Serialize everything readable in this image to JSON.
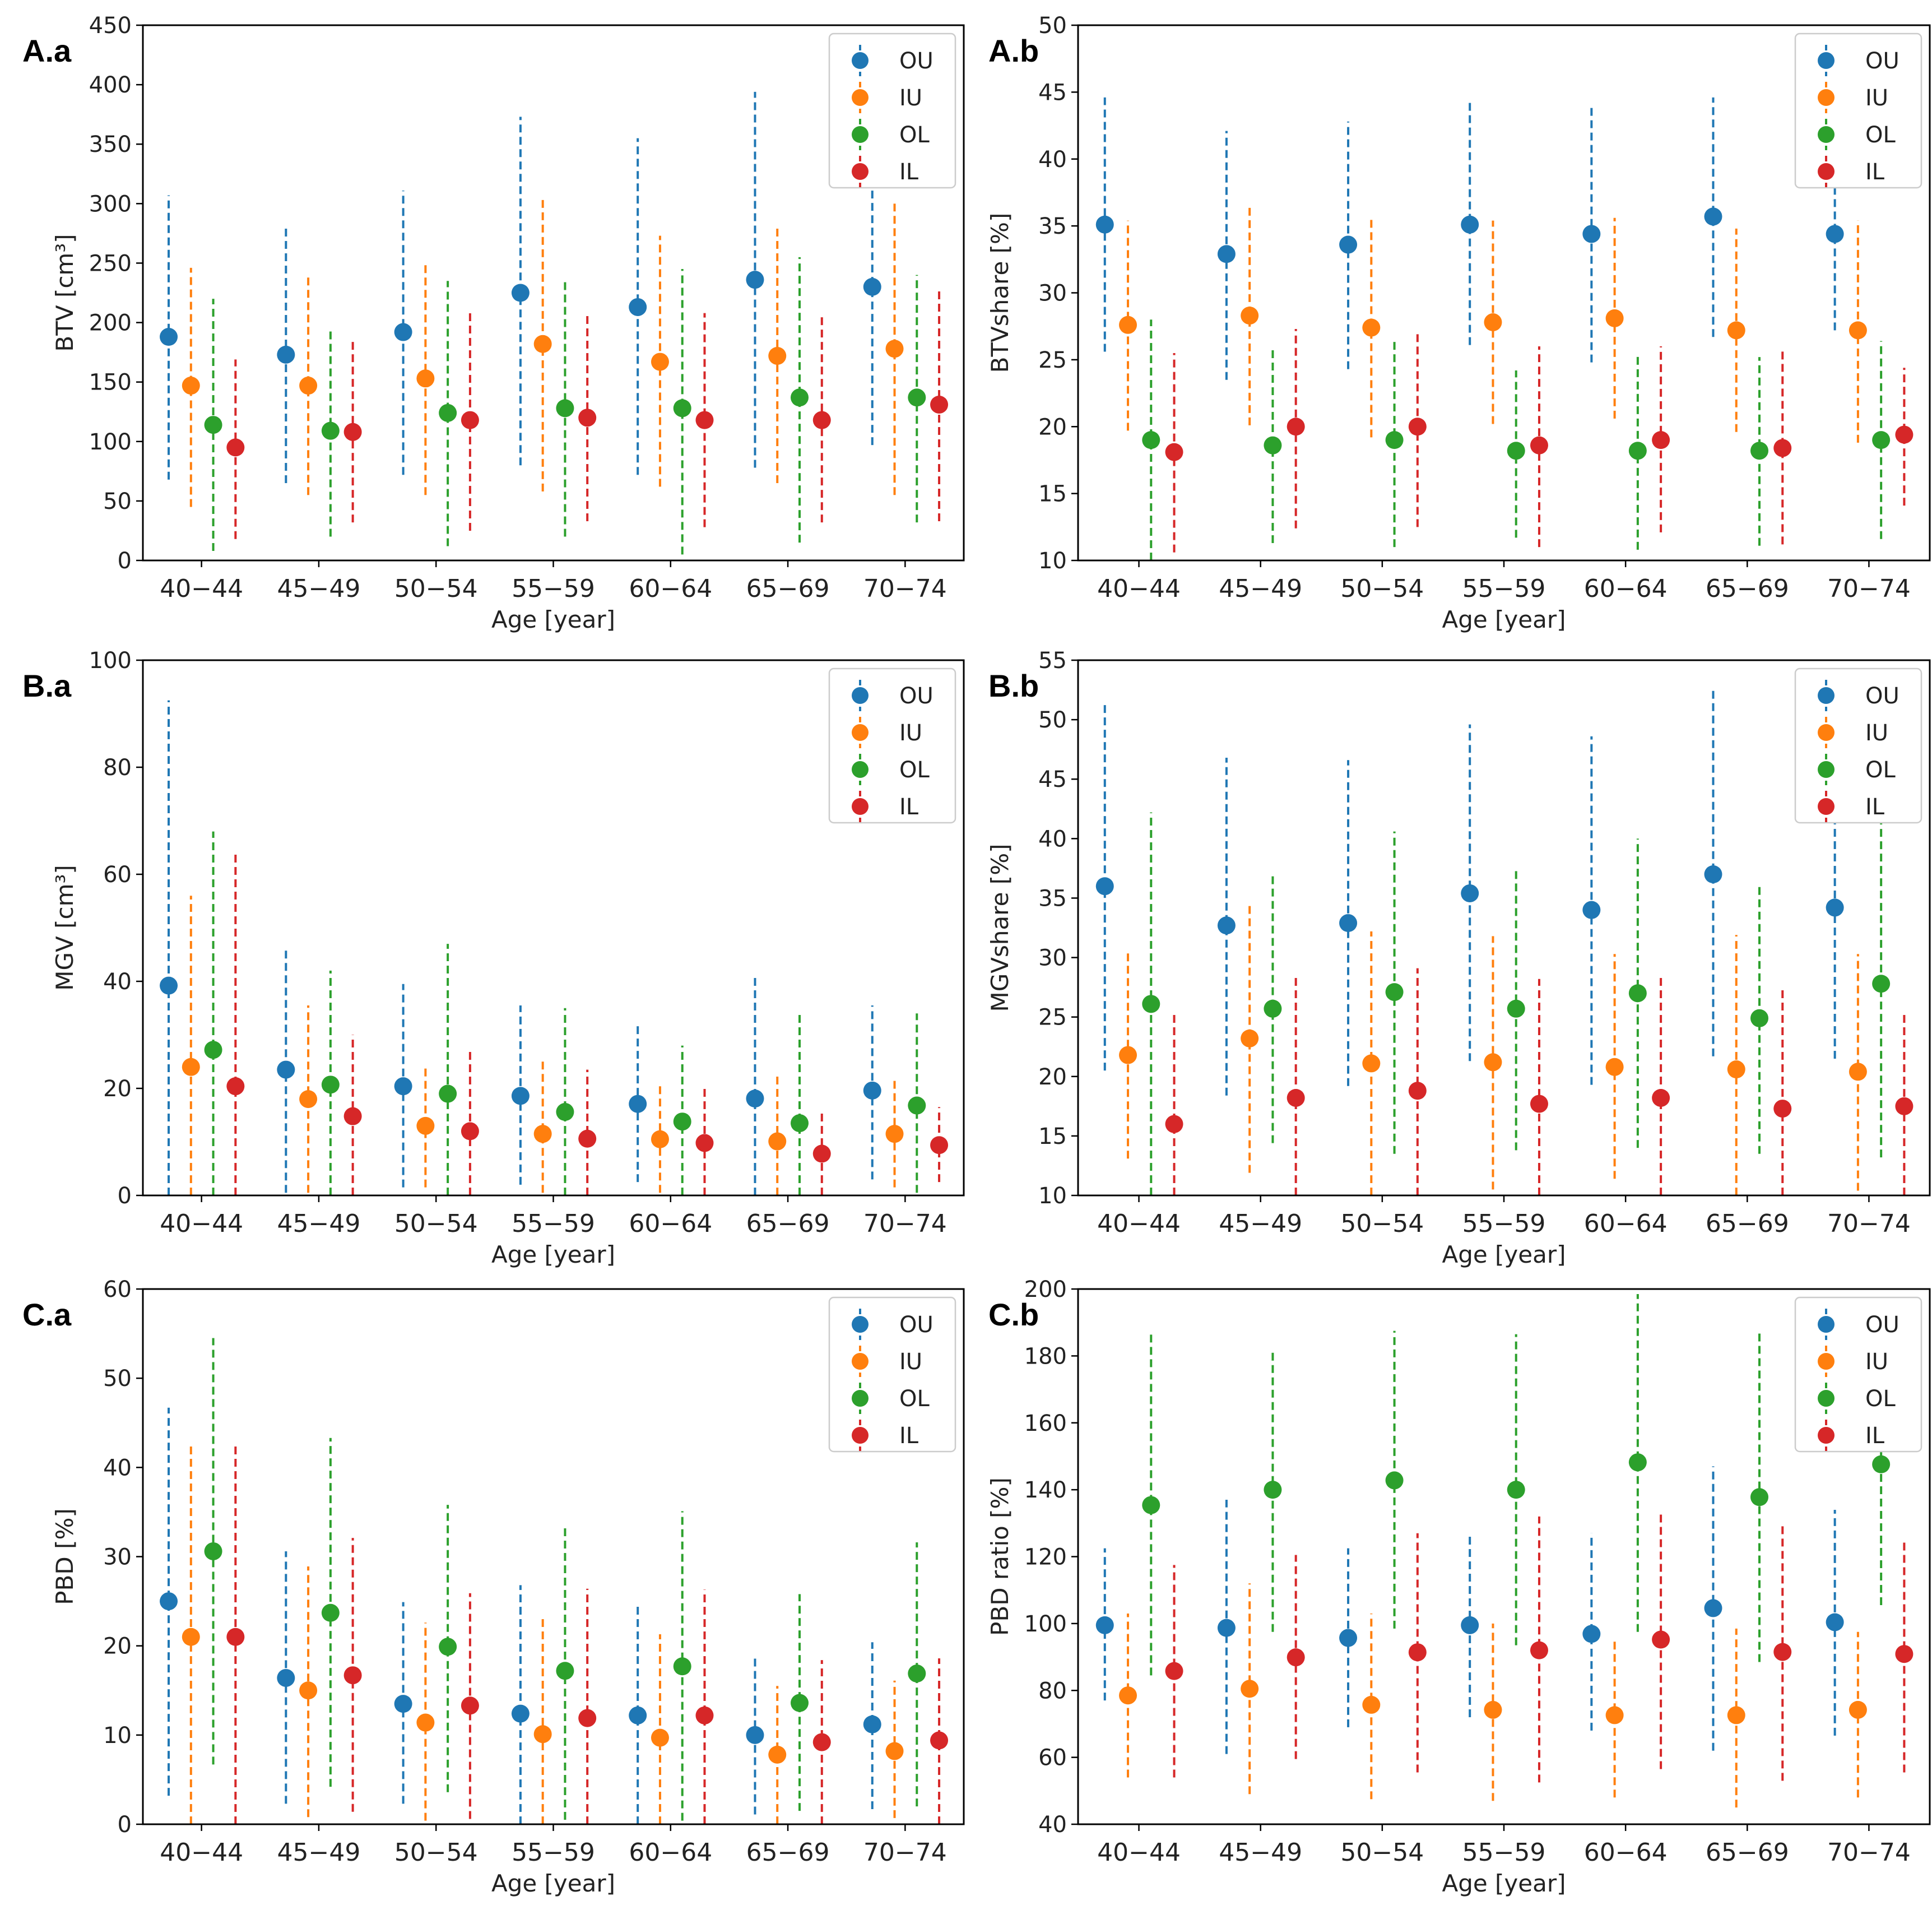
{
  "figure": {
    "colors": {
      "OU": "#1f77b4",
      "IU": "#ff7f0e",
      "OL": "#2ca02c",
      "IL": "#d62728"
    }
  },
  "chart_data": [
    {
      "id": "A.a",
      "type": "scatter",
      "panel_label": "A.a",
      "xlabel": "Age [year]",
      "ylabel": "BTV [cm³]",
      "ylim": [
        0,
        450
      ],
      "yticks": [
        0,
        50,
        100,
        150,
        200,
        250,
        300,
        350,
        400,
        450
      ],
      "categories": [
        "40−44",
        "45−49",
        "50−54",
        "55−59",
        "60−64",
        "65−69",
        "70−74"
      ],
      "legend": [
        "OU",
        "IU",
        "OL",
        "IL"
      ],
      "legend_position": "top-right",
      "series": [
        {
          "name": "OU",
          "values": [
            188,
            173,
            192,
            225,
            213,
            236,
            230
          ],
          "lower": [
            68,
            65,
            72,
            80,
            72,
            78,
            97
          ],
          "upper": [
            307,
            280,
            311,
            373,
            355,
            394,
            363
          ]
        },
        {
          "name": "IU",
          "values": [
            147,
            147,
            153,
            182,
            167,
            172,
            178
          ],
          "lower": [
            45,
            55,
            55,
            58,
            62,
            65,
            55
          ],
          "upper": [
            246,
            239,
            251,
            304,
            273,
            280,
            300
          ]
        },
        {
          "name": "OL",
          "values": [
            114,
            109,
            124,
            128,
            128,
            137,
            137
          ],
          "lower": [
            8,
            20,
            12,
            20,
            5,
            15,
            32
          ],
          "upper": [
            220,
            193,
            235,
            236,
            245,
            255,
            240
          ]
        },
        {
          "name": "IL",
          "values": [
            95,
            108,
            118,
            120,
            118,
            118,
            131
          ],
          "lower": [
            18,
            32,
            25,
            33,
            28,
            32,
            33
          ],
          "upper": [
            169,
            185,
            211,
            207,
            208,
            206,
            228
          ]
        }
      ]
    },
    {
      "id": "A.b",
      "type": "scatter",
      "panel_label": "A.b",
      "xlabel": "Age [year]",
      "ylabel": "BTVshare [%]",
      "ylim": [
        10,
        50
      ],
      "yticks": [
        10,
        15,
        20,
        25,
        30,
        35,
        40,
        45,
        50
      ],
      "categories": [
        "40−44",
        "45−49",
        "50−54",
        "55−59",
        "60−64",
        "65−69",
        "70−74"
      ],
      "legend": [
        "OU",
        "IU",
        "OL",
        "IL"
      ],
      "legend_position": "top-right",
      "series": [
        {
          "name": "OU",
          "values": [
            35.1,
            32.9,
            33.6,
            35.1,
            34.4,
            35.7,
            34.4
          ],
          "lower": [
            25.6,
            23.5,
            24.3,
            26.1,
            24.8,
            26.7,
            27.2
          ],
          "upper": [
            44.6,
            42.1,
            42.8,
            44.3,
            44.0,
            44.6,
            41.5
          ]
        },
        {
          "name": "IU",
          "values": [
            27.6,
            28.3,
            27.4,
            27.8,
            28.1,
            27.2,
            27.2
          ],
          "lower": [
            19.7,
            20.1,
            19.2,
            20.2,
            20.6,
            19.6,
            18.8
          ],
          "upper": [
            35.4,
            36.6,
            35.6,
            35.4,
            35.6,
            34.8,
            35.4
          ]
        },
        {
          "name": "OL",
          "values": [
            19.0,
            18.6,
            19.0,
            18.2,
            18.2,
            18.2,
            19.0
          ],
          "lower": [
            10.0,
            11.3,
            11.0,
            11.7,
            10.8,
            11.1,
            11.6
          ],
          "upper": [
            28.0,
            25.9,
            26.6,
            24.2,
            25.4,
            25.2,
            26.4
          ]
        },
        {
          "name": "IL",
          "values": [
            18.1,
            20.0,
            20.0,
            18.6,
            19.0,
            18.4,
            19.4
          ],
          "lower": [
            10.6,
            12.4,
            12.5,
            11.0,
            12.1,
            11.2,
            14.1
          ],
          "upper": [
            25.5,
            27.3,
            27.0,
            26.0,
            26.0,
            25.8,
            24.4
          ]
        }
      ]
    },
    {
      "id": "B.a",
      "type": "scatter",
      "panel_label": "B.a",
      "xlabel": "Age [year]",
      "ylabel": "MGV [cm³]",
      "ylim": [
        0,
        100
      ],
      "yticks": [
        0,
        20,
        40,
        60,
        80,
        100
      ],
      "categories": [
        "40−44",
        "45−49",
        "50−54",
        "55−59",
        "60−64",
        "65−69",
        "70−74"
      ],
      "legend": [
        "OU",
        "IU",
        "OL",
        "IL"
      ],
      "legend_position": "top-right",
      "series": [
        {
          "name": "OU",
          "values": [
            39.2,
            23.5,
            20.4,
            18.6,
            17.1,
            18.1,
            19.6
          ],
          "lower": [
            0,
            0.5,
            1.5,
            2,
            2.5,
            0,
            3
          ],
          "upper": [
            92.5,
            46.5,
            39.5,
            35.5,
            32,
            41,
            35.5
          ]
        },
        {
          "name": "IU",
          "values": [
            24,
            18,
            13,
            11.5,
            10.5,
            10.1,
            11.5
          ],
          "lower": [
            0,
            0.5,
            1.5,
            0.5,
            0.5,
            0,
            1.5
          ],
          "upper": [
            56,
            35.5,
            24.5,
            25,
            21,
            22.5,
            21.5
          ]
        },
        {
          "name": "OL",
          "values": [
            27.2,
            20.7,
            19,
            15.6,
            13.8,
            13.5,
            16.8
          ],
          "lower": [
            0,
            0,
            0,
            0,
            0,
            0,
            0.5
          ],
          "upper": [
            68,
            42,
            47,
            35,
            28,
            34,
            34
          ]
        },
        {
          "name": "IL",
          "values": [
            20.4,
            14.8,
            12,
            10.6,
            9.8,
            7.8,
            9.4
          ],
          "lower": [
            0,
            0,
            0,
            0,
            0,
            0,
            2.5
          ],
          "upper": [
            64,
            30,
            27.5,
            23.5,
            20.5,
            15.5,
            16.5
          ]
        }
      ]
    },
    {
      "id": "B.b",
      "type": "scatter",
      "panel_label": "B.b",
      "xlabel": "Age [year]",
      "ylabel": "MGVshare [%]",
      "ylim": [
        10,
        55
      ],
      "yticks": [
        10,
        15,
        20,
        25,
        30,
        35,
        40,
        45,
        50,
        55
      ],
      "categories": [
        "40−44",
        "45−49",
        "50−54",
        "55−59",
        "60−64",
        "65−69",
        "70−74"
      ],
      "legend": [
        "OU",
        "IU",
        "OL",
        "IL"
      ],
      "legend_position": "top-right",
      "series": [
        {
          "name": "OU",
          "values": [
            36,
            32.7,
            32.9,
            35.4,
            34,
            37,
            34.2
          ],
          "lower": [
            20.5,
            18.4,
            19.2,
            21.3,
            19.3,
            21.7,
            21.5
          ],
          "upper": [
            51.3,
            46.8,
            46.6,
            49.6,
            48.6,
            52.5,
            46.1
          ]
        },
        {
          "name": "IU",
          "values": [
            21.8,
            23.2,
            21.1,
            21.2,
            20.8,
            20.6,
            20.4
          ],
          "lower": [
            13.1,
            11.9,
            10.0,
            10.5,
            11.4,
            10.0,
            10.4
          ],
          "upper": [
            30.4,
            34.6,
            32.2,
            31.8,
            30.3,
            31.9,
            30.3
          ]
        },
        {
          "name": "OL",
          "values": [
            26.1,
            25.7,
            27.1,
            25.7,
            27,
            24.9,
            27.8
          ],
          "lower": [
            10.0,
            14.4,
            13.5,
            13.8,
            14.0,
            13.5,
            13.2
          ],
          "upper": [
            42.2,
            37.0,
            40.6,
            37.5,
            40.0,
            36.2,
            42.3
          ]
        },
        {
          "name": "IL",
          "values": [
            16,
            18.2,
            18.8,
            17.7,
            18.2,
            17.3,
            17.5
          ],
          "lower": [
            10.0,
            10.0,
            10.0,
            10.0,
            10.0,
            10.0,
            10.0
          ],
          "upper": [
            25.2,
            28.3,
            29.1,
            28.2,
            28.3,
            27.5,
            25.4
          ]
        }
      ]
    },
    {
      "id": "C.a",
      "type": "scatter",
      "panel_label": "C.a",
      "xlabel": "Age [year]",
      "ylabel": "PBD [%]",
      "ylim": [
        0,
        60
      ],
      "yticks": [
        0,
        10,
        20,
        30,
        40,
        50,
        60
      ],
      "categories": [
        "40−44",
        "45−49",
        "50−54",
        "55−59",
        "60−64",
        "65−69",
        "70−74"
      ],
      "legend": [
        "OU",
        "IU",
        "OL",
        "IL"
      ],
      "legend_position": "top-right",
      "series": [
        {
          "name": "OU",
          "values": [
            25,
            16.4,
            13.5,
            12.4,
            12.2,
            10,
            11.2
          ],
          "lower": [
            3.2,
            2.3,
            2.3,
            0,
            0,
            1.1,
            1.7
          ],
          "upper": [
            46.7,
            30.6,
            24.9,
            26.8,
            24.8,
            18.9,
            20.4
          ]
        },
        {
          "name": "IU",
          "values": [
            21,
            15,
            11.4,
            10.1,
            9.7,
            7.8,
            8.2
          ],
          "lower": [
            0,
            0.8,
            0.4,
            0,
            0,
            0,
            0.7
          ],
          "upper": [
            42.6,
            28.9,
            22.6,
            23,
            21.3,
            15.5,
            16.1
          ]
        },
        {
          "name": "OL",
          "values": [
            30.6,
            23.7,
            19.9,
            17.2,
            17.7,
            13.6,
            16.9
          ],
          "lower": [
            6.7,
            4.2,
            3.6,
            0.5,
            0.4,
            1.5,
            2
          ],
          "upper": [
            54.5,
            43.3,
            35.8,
            33.5,
            35.1,
            25.8,
            31.6
          ]
        },
        {
          "name": "IL",
          "values": [
            21,
            16.7,
            13.3,
            11.9,
            12.2,
            9.2,
            9.4
          ],
          "lower": [
            0,
            1.4,
            0.6,
            0,
            0,
            0,
            0
          ],
          "upper": [
            42.6,
            32.1,
            25.9,
            26.4,
            26.3,
            18.4,
            18.6
          ]
        }
      ]
    },
    {
      "id": "C.b",
      "type": "scatter",
      "panel_label": "C.b",
      "xlabel": "Age [year]",
      "ylabel": "PBD ratio [%]",
      "ylim": [
        40,
        200
      ],
      "yticks": [
        40,
        60,
        80,
        100,
        120,
        140,
        160,
        180,
        200
      ],
      "categories": [
        "40−44",
        "45−49",
        "50−54",
        "55−59",
        "60−64",
        "65−69",
        "70−74"
      ],
      "legend": [
        "OU",
        "IU",
        "OL",
        "IL"
      ],
      "legend_position": "top-right",
      "series": [
        {
          "name": "OU",
          "values": [
            99.5,
            98.7,
            95.7,
            99.5,
            96.9,
            104.6,
            100.4
          ],
          "lower": [
            77,
            61,
            69,
            72,
            68,
            62,
            66.5
          ],
          "upper": [
            122.5,
            137,
            122.5,
            126,
            127,
            147,
            134
          ]
        },
        {
          "name": "IU",
          "values": [
            78.5,
            80.5,
            75.7,
            74.2,
            72.6,
            72.6,
            74.2
          ],
          "lower": [
            54,
            49,
            47.5,
            47,
            48,
            45,
            48
          ],
          "upper": [
            103,
            112,
            103,
            100,
            95.5,
            98.5,
            97.5
          ]
        },
        {
          "name": "OL",
          "values": [
            135.4,
            140,
            142.8,
            140,
            148.2,
            137.8,
            147.6
          ],
          "lower": [
            84.5,
            97.5,
            98.5,
            93.5,
            97.5,
            88.5,
            105.5
          ],
          "upper": [
            187.5,
            182,
            187.5,
            186.5,
            198.5,
            187.5,
            174
          ]
        },
        {
          "name": "IL",
          "values": [
            85.8,
            89.9,
            91.4,
            92,
            95.2,
            91.5,
            90.9
          ],
          "lower": [
            54,
            59.5,
            55.5,
            52.5,
            56.5,
            53,
            55.5
          ],
          "upper": [
            117.5,
            120.5,
            127,
            132,
            133.5,
            130,
            124.5
          ]
        }
      ]
    }
  ]
}
